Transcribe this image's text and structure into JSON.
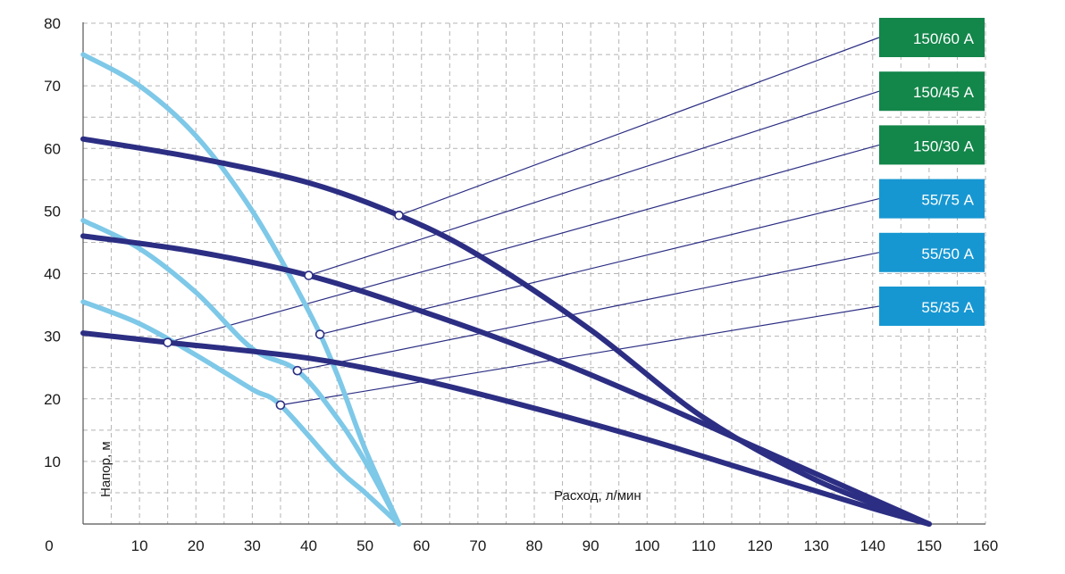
{
  "chart_data": {
    "type": "line",
    "title": "",
    "xlabel": "Расход, л/мин",
    "ylabel": "Напор, м",
    "xlim": [
      0,
      160
    ],
    "ylim": [
      0,
      80
    ],
    "x_ticks": [
      "0",
      "10",
      "20",
      "30",
      "40",
      "50",
      "60",
      "70",
      "80",
      "90",
      "100",
      "110",
      "120",
      "130",
      "140",
      "150",
      "160"
    ],
    "y_ticks": [
      "10",
      "20",
      "30",
      "40",
      "50",
      "60",
      "70",
      "80"
    ],
    "grid": true,
    "legend_position": "right",
    "colors": {
      "dark_curve": "#2c2e83",
      "light_curve": "#7ec8e8",
      "green_label": "#13864a",
      "blue_label": "#1797d2",
      "grid": "#b4b4b4"
    },
    "series": [
      {
        "name": "150/60 А",
        "color": "dark",
        "label_color": "green",
        "points": [
          [
            0,
            61.5
          ],
          [
            20,
            58.5
          ],
          [
            40,
            54.5
          ],
          [
            56,
            49.3
          ],
          [
            70,
            43
          ],
          [
            90,
            31
          ],
          [
            110,
            17
          ],
          [
            130,
            7
          ],
          [
            150,
            0
          ]
        ],
        "marker": [
          56,
          49.3
        ]
      },
      {
        "name": "150/45 А",
        "color": "dark",
        "label_color": "green",
        "points": [
          [
            0,
            46
          ],
          [
            20,
            43.5
          ],
          [
            40,
            39.7
          ],
          [
            60,
            34
          ],
          [
            80,
            27.5
          ],
          [
            100,
            20
          ],
          [
            120,
            12
          ],
          [
            140,
            4
          ],
          [
            150,
            0
          ]
        ],
        "marker": [
          40,
          39.7
        ]
      },
      {
        "name": "150/30 А",
        "color": "dark",
        "label_color": "green",
        "points": [
          [
            0,
            30.5
          ],
          [
            15,
            29
          ],
          [
            40,
            26.5
          ],
          [
            60,
            23
          ],
          [
            80,
            18.5
          ],
          [
            100,
            13.5
          ],
          [
            120,
            8
          ],
          [
            140,
            2.5
          ],
          [
            150,
            0
          ]
        ],
        "marker": [
          15,
          29
        ]
      },
      {
        "name": "55/75 А",
        "color": "light",
        "label_color": "blue",
        "points": [
          [
            0,
            75
          ],
          [
            10,
            70
          ],
          [
            20,
            62
          ],
          [
            30,
            50
          ],
          [
            40,
            34
          ],
          [
            45,
            24
          ],
          [
            50,
            12
          ],
          [
            56,
            0
          ]
        ],
        "marker": [
          42,
          30.3
        ]
      },
      {
        "name": "55/50 А",
        "color": "light",
        "label_color": "blue",
        "points": [
          [
            0,
            48.5
          ],
          [
            10,
            44
          ],
          [
            20,
            37
          ],
          [
            30,
            28
          ],
          [
            38,
            24.5
          ],
          [
            45,
            17
          ],
          [
            50,
            10
          ],
          [
            56,
            0
          ]
        ],
        "marker": [
          38,
          24.5
        ]
      },
      {
        "name": "55/35 А",
        "color": "light",
        "label_color": "blue",
        "points": [
          [
            0,
            35.5
          ],
          [
            10,
            32
          ],
          [
            20,
            27
          ],
          [
            30,
            21.5
          ],
          [
            35,
            19
          ],
          [
            45,
            9
          ],
          [
            50,
            5
          ],
          [
            56,
            0
          ]
        ],
        "marker": [
          35,
          19
        ]
      }
    ]
  }
}
